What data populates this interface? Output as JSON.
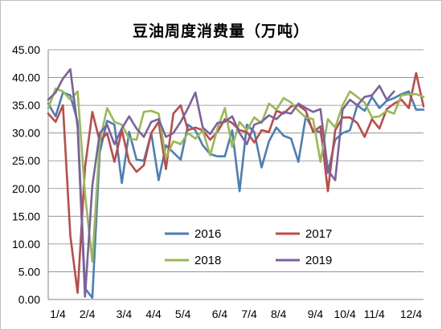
{
  "chart_data": {
    "type": "line",
    "title": "豆油周度消费量（万吨）",
    "xlabel": "",
    "ylabel": "",
    "ylim": [
      0,
      45
    ],
    "yticks": [
      "0.00",
      "5.00",
      "10.00",
      "15.00",
      "20.00",
      "25.00",
      "30.00",
      "35.00",
      "40.00",
      "45.00"
    ],
    "xticks": [
      "1/4",
      "2/4",
      "3/4",
      "4/4",
      "5/4",
      "6/4",
      "7/4",
      "8/4",
      "9/4",
      "10/4",
      "11/4",
      "12/4"
    ],
    "week_count": 52,
    "legend_position": "inside-bottom",
    "grid": "horizontal",
    "series": [
      {
        "name": "2016",
        "color": "#4a7ebb",
        "values": [
          35.3,
          33.0,
          37.3,
          36.8,
          32.0,
          2.0,
          0.3,
          26.5,
          32.2,
          31.5,
          21.0,
          30.2,
          25.2,
          25.0,
          30.0,
          21.5,
          27.8,
          26.5,
          25.2,
          31.5,
          30.5,
          27.8,
          26.2,
          25.8,
          25.8,
          30.5,
          19.5,
          31.5,
          30.2,
          23.8,
          28.5,
          31.0,
          29.5,
          29.0,
          24.8,
          33.0,
          30.5,
          30.2,
          22.8,
          28.8,
          30.0,
          30.5,
          35.0,
          34.0,
          36.5,
          34.5,
          35.8,
          36.3,
          37.0,
          37.5,
          34.2,
          34.2
        ]
      },
      {
        "name": "2017",
        "color": "#be4b48",
        "values": [
          33.5,
          32.0,
          35.0,
          11.5,
          1.2,
          23.8,
          33.8,
          28.5,
          30.0,
          24.8,
          30.5,
          24.8,
          23.0,
          24.2,
          30.0,
          32.0,
          23.5,
          33.5,
          35.0,
          30.5,
          31.0,
          30.5,
          28.8,
          30.2,
          32.5,
          31.8,
          30.5,
          30.2,
          28.3,
          30.5,
          30.2,
          34.0,
          33.5,
          34.8,
          35.0,
          34.0,
          30.2,
          31.2,
          19.5,
          30.5,
          32.8,
          32.8,
          31.8,
          29.3,
          32.5,
          30.8,
          34.3,
          35.3,
          36.0,
          34.5,
          40.8,
          34.8
        ]
      },
      {
        "name": "2018",
        "color": "#98b954",
        "values": [
          34.5,
          38.0,
          37.5,
          36.0,
          37.5,
          19.0,
          6.8,
          28.5,
          34.5,
          32.0,
          31.5,
          29.0,
          28.8,
          33.8,
          34.0,
          33.5,
          25.5,
          28.5,
          28.0,
          30.0,
          29.0,
          30.5,
          26.0,
          30.8,
          34.5,
          27.5,
          32.0,
          30.5,
          32.8,
          31.8,
          35.3,
          34.2,
          36.3,
          35.5,
          34.0,
          32.8,
          32.5,
          24.8,
          32.5,
          31.0,
          35.0,
          37.5,
          36.5,
          35.5,
          32.8,
          33.0,
          34.0,
          33.5,
          36.8,
          37.0,
          37.0,
          36.5
        ]
      },
      {
        "name": "2019",
        "color": "#7d60a0",
        "values": [
          36.0,
          37.3,
          39.8,
          41.5,
          31.0,
          0.5,
          20.5,
          30.0,
          31.5,
          28.0,
          30.8,
          33.0,
          30.8,
          29.3,
          32.0,
          32.5,
          29.3,
          30.0,
          32.0,
          34.5,
          37.3,
          31.0,
          29.8,
          31.8,
          32.0,
          33.0,
          30.0,
          28.0,
          31.5,
          32.0,
          33.2,
          32.5,
          33.8,
          33.5,
          35.3,
          34.5,
          33.8,
          34.3,
          23.3,
          21.5,
          34.2,
          36.0,
          35.0,
          36.5,
          36.8,
          38.5,
          36.0,
          37.5
        ]
      }
    ]
  }
}
